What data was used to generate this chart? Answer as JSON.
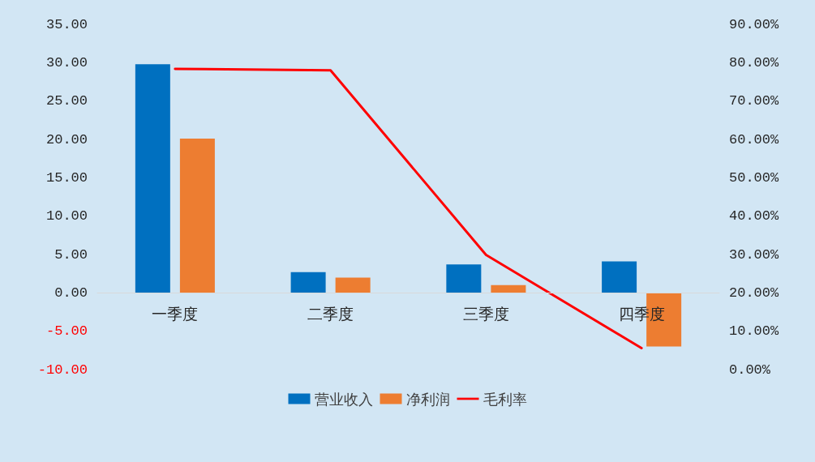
{
  "chart_data": {
    "type": "bar",
    "categories": [
      "一季度",
      "二季度",
      "三季度",
      "四季度"
    ],
    "series": [
      {
        "name": "营业收入",
        "color": "#0070c0",
        "values": [
          29.8,
          2.7,
          3.7,
          4.1
        ]
      },
      {
        "name": "净利润",
        "color": "#ed7d31",
        "values": [
          20.1,
          2.0,
          1.0,
          -7.0
        ]
      },
      {
        "name": "毛利率",
        "type": "line",
        "axis": "y2",
        "color": "#ff0000",
        "values": [
          78.4,
          78.0,
          29.9,
          5.6
        ]
      }
    ],
    "ylim": [
      -10,
      35
    ],
    "yticks": [
      {
        "value": -10,
        "label": "-10.00"
      },
      {
        "value": -5,
        "label": "-5.00"
      },
      {
        "value": 0,
        "label": "0.00"
      },
      {
        "value": 5,
        "label": "5.00"
      },
      {
        "value": 10,
        "label": "10.00"
      },
      {
        "value": 15,
        "label": "15.00"
      },
      {
        "value": 20,
        "label": "20.00"
      },
      {
        "value": 25,
        "label": "25.00"
      },
      {
        "value": 30,
        "label": "30.00"
      },
      {
        "value": 35,
        "label": "35.00"
      }
    ],
    "y2lim": [
      0,
      90
    ],
    "y2ticks": [
      {
        "value": 0,
        "label": "0.00%"
      },
      {
        "value": 10,
        "label": "10.00%"
      },
      {
        "value": 20,
        "label": "20.00%"
      },
      {
        "value": 30,
        "label": "30.00%"
      },
      {
        "value": 40,
        "label": "40.00%"
      },
      {
        "value": 50,
        "label": "50.00%"
      },
      {
        "value": 60,
        "label": "60.00%"
      },
      {
        "value": 70,
        "label": "70.00%"
      },
      {
        "value": 80,
        "label": "80.00%"
      },
      {
        "value": 90,
        "label": "90.00%"
      }
    ],
    "grid": false,
    "legend": "bottom",
    "marker": "none",
    "line_style": "solid"
  }
}
